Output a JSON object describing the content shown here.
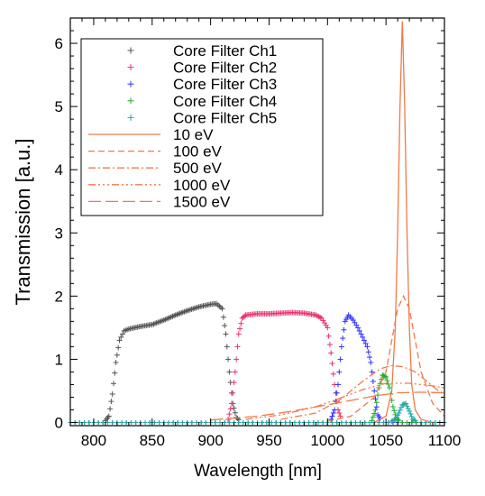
{
  "chart_data": {
    "type": "scatter",
    "xlabel": "Wavelength [nm]",
    "ylabel": "Transmission [a.u.]",
    "xlim": [
      780,
      1100
    ],
    "ylim": [
      -0.05,
      6.4
    ],
    "xticks": [
      800,
      850,
      900,
      950,
      1000,
      1050,
      1100
    ],
    "yticks": [
      0,
      1,
      2,
      3,
      4,
      5,
      6
    ],
    "grid": false,
    "legend_position": "top-left",
    "series": [
      {
        "name": "Core Filter Ch1",
        "kind": "marker",
        "color": "#555555",
        "x": [
          810,
          813,
          816,
          819,
          822,
          826,
          830,
          840,
          850,
          860,
          870,
          880,
          890,
          900,
          905,
          910,
          913,
          916,
          919,
          922,
          925
        ],
        "y": [
          0.03,
          0.1,
          0.45,
          0.95,
          1.3,
          1.45,
          1.48,
          1.52,
          1.55,
          1.62,
          1.7,
          1.77,
          1.83,
          1.87,
          1.88,
          1.8,
          1.4,
          0.8,
          0.3,
          0.08,
          0.03
        ]
      },
      {
        "name": "Core Filter Ch2",
        "kind": "marker",
        "color": "#e8336b",
        "x": [
          915,
          918,
          921,
          924,
          927,
          930,
          940,
          950,
          960,
          970,
          980,
          990,
          995,
          1000,
          1003,
          1006,
          1009,
          1012
        ],
        "y": [
          0.05,
          0.3,
          0.8,
          1.4,
          1.65,
          1.7,
          1.72,
          1.72,
          1.73,
          1.74,
          1.73,
          1.7,
          1.65,
          1.5,
          1.1,
          0.6,
          0.2,
          0.05
        ]
      },
      {
        "name": "Core Filter Ch3",
        "kind": "marker",
        "color": "#3333ff",
        "x": [
          1003,
          1006,
          1009,
          1012,
          1015,
          1018,
          1022,
          1026,
          1030,
          1034,
          1037,
          1040,
          1043,
          1046
        ],
        "y": [
          0.05,
          0.2,
          0.6,
          1.2,
          1.6,
          1.7,
          1.62,
          1.5,
          1.35,
          1.2,
          0.95,
          0.5,
          0.12,
          0.03
        ]
      },
      {
        "name": "Core Filter Ch4",
        "kind": "marker",
        "color": "#22aa33",
        "x": [
          1038,
          1041,
          1044,
          1047,
          1050,
          1053,
          1056,
          1059,
          1062
        ],
        "y": [
          0.03,
          0.2,
          0.55,
          0.75,
          0.72,
          0.55,
          0.25,
          0.06,
          0.02
        ]
      },
      {
        "name": "Core Filter Ch5",
        "kind": "marker",
        "color": "#22a8a8",
        "x": [
          1055,
          1058,
          1061,
          1064,
          1067,
          1070,
          1073,
          1076
        ],
        "y": [
          0.02,
          0.05,
          0.15,
          0.28,
          0.3,
          0.18,
          0.05,
          0.02
        ]
      },
      {
        "name": "10 eV",
        "kind": "line",
        "dash": "",
        "color": "#f07a4a",
        "x": [
          1040,
          1050,
          1055,
          1058,
          1060,
          1062,
          1064,
          1066,
          1068,
          1070,
          1072,
          1075,
          1080,
          1090
        ],
        "y": [
          0.0,
          0.1,
          0.5,
          1.5,
          3.0,
          5.0,
          6.35,
          5.0,
          3.0,
          1.5,
          0.6,
          0.2,
          0.05,
          0.0
        ]
      },
      {
        "name": "100 eV",
        "kind": "line",
        "dash": "7,4",
        "color": "#f07a4a",
        "x": [
          1000,
          1020,
          1040,
          1050,
          1055,
          1060,
          1065,
          1070,
          1075,
          1080,
          1090,
          1100
        ],
        "y": [
          0.02,
          0.1,
          0.4,
          0.8,
          1.3,
          1.8,
          2.0,
          1.8,
          1.3,
          0.8,
          0.3,
          0.1
        ]
      },
      {
        "name": "500 eV",
        "kind": "line",
        "dash": "8,3,2,3",
        "color": "#f07a4a",
        "x": [
          960,
          990,
          1010,
          1030,
          1045,
          1055,
          1065,
          1075,
          1085,
          1095,
          1100
        ],
        "y": [
          0.05,
          0.15,
          0.35,
          0.65,
          0.85,
          0.9,
          0.88,
          0.8,
          0.65,
          0.5,
          0.45
        ]
      },
      {
        "name": "1000 eV",
        "kind": "line",
        "dash": "8,3,2,3,2,3,2,3",
        "color": "#f07a4a",
        "x": [
          930,
          960,
          990,
          1010,
          1030,
          1050,
          1070,
          1090,
          1100
        ],
        "y": [
          0.05,
          0.12,
          0.25,
          0.38,
          0.52,
          0.62,
          0.62,
          0.58,
          0.55
        ]
      },
      {
        "name": "1500 eV",
        "kind": "line",
        "dash": "14,5",
        "color": "#f07a4a",
        "x": [
          900,
          940,
          970,
          1000,
          1020,
          1040,
          1060,
          1080,
          1100
        ],
        "y": [
          0.04,
          0.1,
          0.18,
          0.28,
          0.35,
          0.42,
          0.47,
          0.48,
          0.47
        ]
      }
    ]
  }
}
